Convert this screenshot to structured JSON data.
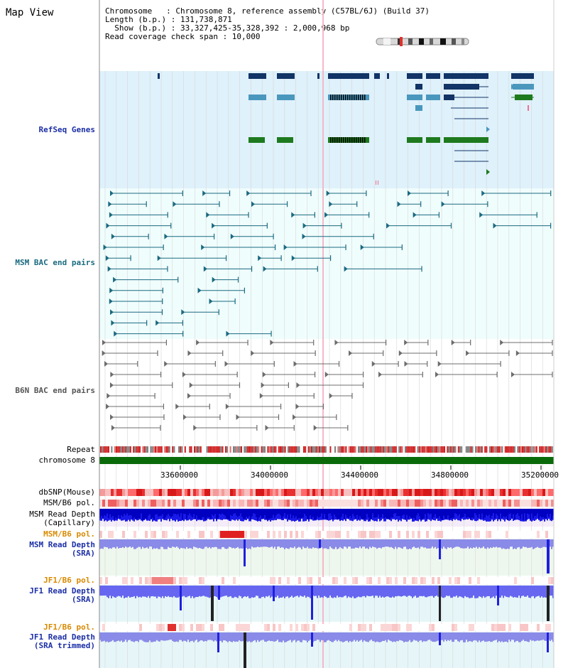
{
  "app": {
    "title": "Map View"
  },
  "header": {
    "chromosome": "Chromosome   : Chromosome 8, reference assembly (C57BL/6J) (Build 37)",
    "length": "Length (b.p.) : 131,738,871",
    "show": "  Show (b.p.) : 33,327,425-35,328,392 : 2,000,968 bp",
    "span": "Read coverage check span : 10,000"
  },
  "tracks": {
    "refseq": "RefSeq Genes",
    "msm_bac": "MSM BAC end pairs",
    "b6n_bac": "B6N BAC end pairs",
    "repeat": "Repeat",
    "chromosome": "chromosome 8",
    "dbsnp": "dbSNP(Mouse)",
    "msm_b6_pol1": "MSM/B6 pol.",
    "msm_depth_cap_1": "MSM Read Depth",
    "msm_depth_cap_2": "(Capillary)",
    "msm_b6_pol2": "MSM/B6 pol.",
    "msm_depth_sra_1": "MSM Read Depth",
    "msm_depth_sra_2": "(SRA)",
    "jf1_b6_pol1": "JF1/B6 pol.",
    "jf1_depth_sra_1": "JF1 Read Depth",
    "jf1_depth_sra_2": "(SRA)",
    "jf1_b6_pol2": "JF1/B6 pol.",
    "jf1_depth_trim_1": "JF1 Read Depth",
    "jf1_depth_trim_2": "(SRA trimmed)"
  },
  "axis": {
    "ticks": [
      "33600000",
      "34000000",
      "34400000",
      "34800000",
      "35200000"
    ]
  },
  "colors": {
    "refseq_bg": "#dff1fb",
    "bac_bg": "#f0fdfd",
    "gene_dark": "#123466",
    "gene_mid": "#4a97be",
    "gene_green": "#1e7a1e",
    "bac_line": "#1a6a80",
    "b6n_line": "#6c6c6c",
    "blue_label": "#1c2fa6",
    "orange_label": "#d98a00",
    "chrom_green": "#0a6a0a"
  }
}
